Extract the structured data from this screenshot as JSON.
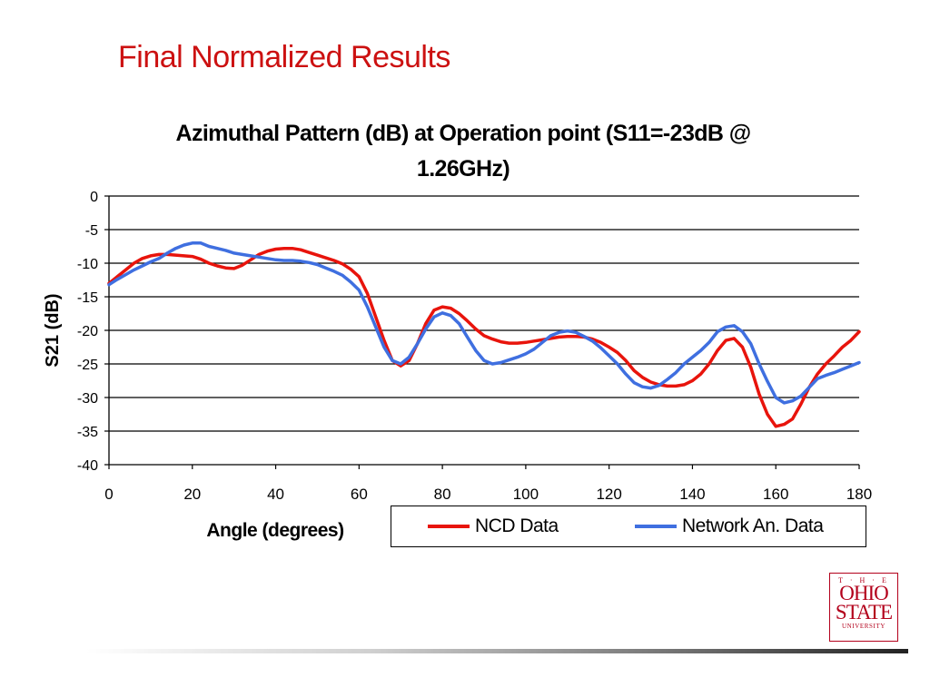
{
  "slide": {
    "title": "Final Normalized Results"
  },
  "logo": {
    "line1": "T · H · E",
    "line2": "OHIO",
    "line3": "STATE",
    "line4": "UNIVERSITY"
  },
  "chart_data": {
    "type": "line",
    "title_line1": "Azimuthal Pattern (dB) at Operation point (S11=-23dB @",
    "title_line2": "1.26GHz)",
    "xlabel": "Angle (degrees)",
    "ylabel": "S21 (dB)",
    "xlim": [
      0,
      180
    ],
    "ylim": [
      -40,
      0
    ],
    "xticks": [
      0,
      20,
      40,
      60,
      80,
      100,
      120,
      140,
      160,
      180
    ],
    "yticks": [
      0,
      -5,
      -10,
      -15,
      -20,
      -25,
      -30,
      -35,
      -40
    ],
    "grid": "horizontal",
    "legend_position": "bottom-right",
    "series": [
      {
        "name": "NCD Data",
        "color": "#e8140c",
        "x": [
          0,
          2,
          4,
          6,
          8,
          10,
          12,
          14,
          16,
          18,
          20,
          22,
          24,
          26,
          28,
          30,
          32,
          34,
          36,
          38,
          40,
          42,
          44,
          46,
          48,
          50,
          52,
          54,
          56,
          58,
          60,
          62,
          64,
          66,
          68,
          70,
          72,
          74,
          76,
          78,
          80,
          82,
          84,
          86,
          88,
          90,
          92,
          94,
          96,
          98,
          100,
          102,
          104,
          106,
          108,
          110,
          112,
          114,
          116,
          118,
          120,
          122,
          124,
          126,
          128,
          130,
          132,
          134,
          136,
          138,
          140,
          142,
          144,
          146,
          148,
          150,
          152,
          154,
          156,
          158,
          160,
          162,
          164,
          166,
          168,
          170,
          172,
          174,
          176,
          178,
          180
        ],
        "values": [
          -13.0,
          -12.0,
          -11.0,
          -10.0,
          -9.3,
          -8.9,
          -8.7,
          -8.7,
          -8.8,
          -8.9,
          -9.0,
          -9.4,
          -10.0,
          -10.4,
          -10.7,
          -10.8,
          -10.3,
          -9.5,
          -8.7,
          -8.2,
          -7.9,
          -7.8,
          -7.8,
          -8.0,
          -8.4,
          -8.8,
          -9.2,
          -9.6,
          -10.1,
          -10.9,
          -12.0,
          -14.5,
          -18.0,
          -21.5,
          -24.5,
          -25.3,
          -24.5,
          -22.0,
          -19.0,
          -17.0,
          -16.5,
          -16.7,
          -17.5,
          -18.6,
          -19.8,
          -20.8,
          -21.3,
          -21.7,
          -21.9,
          -21.9,
          -21.8,
          -21.6,
          -21.4,
          -21.2,
          -21.0,
          -20.9,
          -20.9,
          -21.0,
          -21.3,
          -21.8,
          -22.5,
          -23.3,
          -24.5,
          -26.0,
          -27.0,
          -27.7,
          -28.1,
          -28.3,
          -28.3,
          -28.1,
          -27.5,
          -26.5,
          -25.0,
          -23.0,
          -21.5,
          -21.2,
          -22.5,
          -25.5,
          -29.5,
          -32.5,
          -34.3,
          -34.0,
          -33.2,
          -31.0,
          -28.5,
          -26.5,
          -25.0,
          -23.8,
          -22.5,
          -21.5,
          -20.2
        ]
      },
      {
        "name": "Network An. Data",
        "color": "#3f6fe0",
        "x": [
          0,
          2,
          4,
          6,
          8,
          10,
          12,
          14,
          16,
          18,
          20,
          22,
          24,
          26,
          28,
          30,
          32,
          34,
          36,
          38,
          40,
          42,
          44,
          46,
          48,
          50,
          52,
          54,
          56,
          58,
          60,
          62,
          64,
          66,
          68,
          70,
          72,
          74,
          76,
          78,
          80,
          82,
          84,
          86,
          88,
          90,
          92,
          94,
          96,
          98,
          100,
          102,
          104,
          106,
          108,
          110,
          112,
          114,
          116,
          118,
          120,
          122,
          124,
          126,
          128,
          130,
          132,
          134,
          136,
          138,
          140,
          142,
          144,
          146,
          148,
          150,
          152,
          154,
          156,
          158,
          160,
          162,
          164,
          166,
          168,
          170,
          172,
          174,
          176,
          178,
          180
        ],
        "values": [
          -13.2,
          -12.4,
          -11.7,
          -11.0,
          -10.4,
          -9.8,
          -9.3,
          -8.5,
          -7.8,
          -7.3,
          -7.0,
          -7.0,
          -7.5,
          -7.8,
          -8.1,
          -8.5,
          -8.7,
          -8.9,
          -9.1,
          -9.3,
          -9.5,
          -9.6,
          -9.6,
          -9.7,
          -9.9,
          -10.2,
          -10.7,
          -11.2,
          -11.8,
          -12.8,
          -14.0,
          -16.5,
          -19.5,
          -22.5,
          -24.5,
          -25.0,
          -24.0,
          -22.0,
          -19.8,
          -18.0,
          -17.4,
          -17.8,
          -19.0,
          -21.0,
          -23.0,
          -24.5,
          -25.0,
          -24.8,
          -24.4,
          -24.0,
          -23.5,
          -22.8,
          -21.8,
          -20.8,
          -20.3,
          -20.1,
          -20.3,
          -20.9,
          -21.6,
          -22.6,
          -23.8,
          -25.0,
          -26.5,
          -27.8,
          -28.4,
          -28.6,
          -28.2,
          -27.3,
          -26.3,
          -25.0,
          -24.0,
          -23.0,
          -21.8,
          -20.2,
          -19.5,
          -19.3,
          -20.2,
          -22.0,
          -25.0,
          -27.6,
          -30.0,
          -30.8,
          -30.5,
          -29.8,
          -28.5,
          -27.2,
          -26.7,
          -26.3,
          -25.8,
          -25.3,
          -24.8
        ]
      }
    ]
  }
}
